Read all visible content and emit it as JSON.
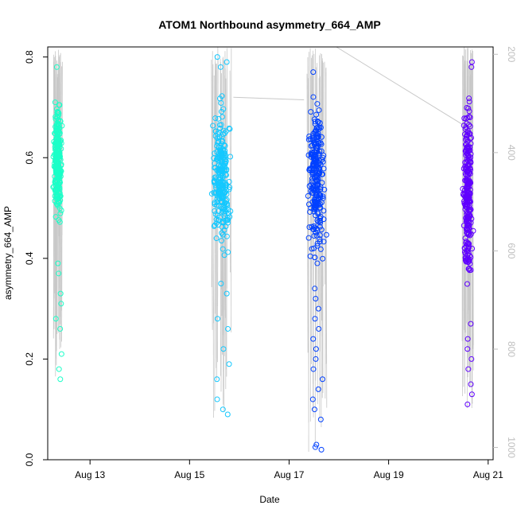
{
  "chart_data": {
    "type": "scatter",
    "title": "ATOM1 Northbound asymmetry_664_AMP",
    "xlabel": "Date",
    "ylabel": "asymmetry_664_AMP",
    "x_unit": "days in August",
    "xlim": [
      12.15,
      21.1
    ],
    "ylim": [
      0.0,
      0.82
    ],
    "x_ticks": [
      {
        "value": 13,
        "label": "Aug 13"
      },
      {
        "value": 15,
        "label": "Aug 15"
      },
      {
        "value": 17,
        "label": "Aug 17"
      },
      {
        "value": 19,
        "label": "Aug 19"
      },
      {
        "value": 21,
        "label": "Aug 21"
      }
    ],
    "y_ticks": [
      {
        "value": 0.0,
        "label": "0.0"
      },
      {
        "value": 0.2,
        "label": "0.2"
      },
      {
        "value": 0.4,
        "label": "0.4"
      },
      {
        "value": 0.6,
        "label": "0.6"
      },
      {
        "value": 0.8,
        "label": "0.8"
      }
    ],
    "secondary_axis": {
      "side": "right",
      "color": "#bfbfbf",
      "range": [
        1025,
        185
      ],
      "ticks": [
        {
          "value": 200,
          "label": "200"
        },
        {
          "value": 400,
          "label": "400"
        },
        {
          "value": 600,
          "label": "600"
        },
        {
          "value": 800,
          "label": "800"
        },
        {
          "value": 1000,
          "label": "1000"
        }
      ],
      "trace_color": "#c8c8c8",
      "connectors": [
        {
          "from": [
            15.88,
            0.72
          ],
          "to": [
            17.3,
            0.715
          ]
        },
        {
          "from": [
            17.95,
            0.82
          ],
          "to": [
            20.5,
            0.665
          ]
        }
      ]
    },
    "series": [
      {
        "name": "Aug 12",
        "color": "#1affc8",
        "x_range": [
          12.25,
          12.45
        ],
        "core": [
          0.45,
          0.73
        ],
        "outliers": [
          0.18,
          0.16,
          0.21,
          0.26,
          0.28,
          0.31,
          0.33,
          0.37,
          0.39,
          0.78
        ]
      },
      {
        "name": "Aug 15",
        "color": "#14c8ff",
        "x_range": [
          15.42,
          15.85
        ],
        "core": [
          0.38,
          0.74
        ],
        "outliers": [
          0.09,
          0.1,
          0.12,
          0.16,
          0.19,
          0.22,
          0.26,
          0.28,
          0.33,
          0.35,
          0.78,
          0.79,
          0.8
        ]
      },
      {
        "name": "Aug 17",
        "color": "#0040ff",
        "x_range": [
          17.35,
          17.75
        ],
        "core": [
          0.36,
          0.76
        ],
        "outliers": [
          0.02,
          0.025,
          0.03,
          0.08,
          0.1,
          0.12,
          0.14,
          0.16,
          0.18,
          0.2,
          0.22,
          0.24,
          0.26,
          0.28,
          0.3,
          0.32,
          0.34,
          0.77
        ]
      },
      {
        "name": "Aug 20",
        "color": "#6000ff",
        "x_range": [
          20.48,
          20.7
        ],
        "core": [
          0.3,
          0.76
        ],
        "outliers": [
          0.11,
          0.13,
          0.15,
          0.18,
          0.2,
          0.22,
          0.24,
          0.27,
          0.78,
          0.79
        ]
      }
    ]
  }
}
